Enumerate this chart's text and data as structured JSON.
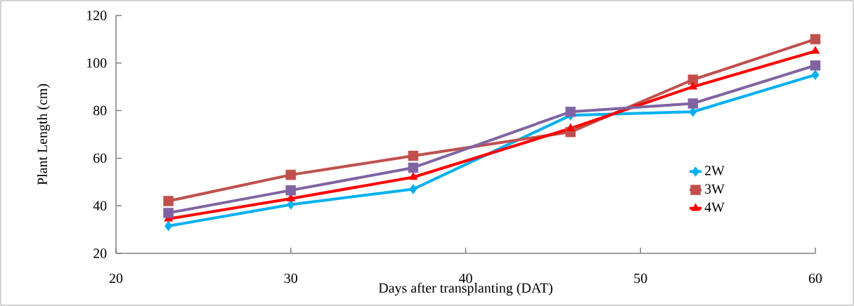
{
  "chart_data": {
    "type": "line",
    "xlabel": "Days after transplanting (DAT)",
    "ylabel": "Plant Length (cm)",
    "x": [
      23,
      30,
      37,
      46,
      53,
      60
    ],
    "series": [
      {
        "name": "2W",
        "color": "#00b0f0",
        "marker": "diamond",
        "values": [
          31.5,
          40.5,
          47,
          78,
          79.5,
          95
        ]
      },
      {
        "name": "3W",
        "color": "#c0504d",
        "marker": "square",
        "values": [
          42,
          53,
          61,
          71,
          93,
          110
        ]
      },
      {
        "name": "4W",
        "color": "#ff0000",
        "marker": "triangle",
        "values": [
          34.5,
          43,
          52,
          72.5,
          90,
          105
        ]
      },
      {
        "color": "#8064a2",
        "marker": "square",
        "values": [
          37,
          46.5,
          56,
          79.5,
          83,
          99
        ]
      }
    ],
    "xlim": [
      20,
      60
    ],
    "xticks": [
      20,
      30,
      40,
      50,
      60
    ],
    "ylim": [
      20,
      120
    ],
    "yticks": [
      20,
      40,
      60,
      80,
      100,
      120
    ],
    "grid": false,
    "legend": "right",
    "line_style": "solid"
  }
}
